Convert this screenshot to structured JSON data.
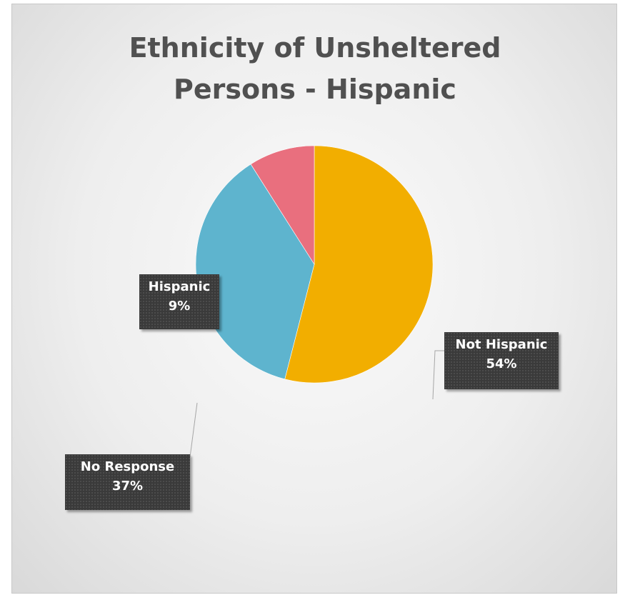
{
  "chart_data": {
    "type": "pie",
    "title": "Ethnicity of Unsheltered Persons - Hispanic",
    "title_lines": [
      "Ethnicity of Unsheltered",
      "Persons - Hispanic"
    ],
    "slices": [
      {
        "label": "Not Hispanic",
        "value": 54,
        "percent_label": "54%",
        "color": "#F2AE00"
      },
      {
        "label": "No Response",
        "value": 37,
        "percent_label": "37%",
        "color": "#5EB4CE"
      },
      {
        "label": "Hispanic",
        "value": 9,
        "percent_label": "9%",
        "color": "#E96F7E"
      }
    ],
    "start_angle": "12 o'clock",
    "direction": "clockwise",
    "legend": "none"
  }
}
